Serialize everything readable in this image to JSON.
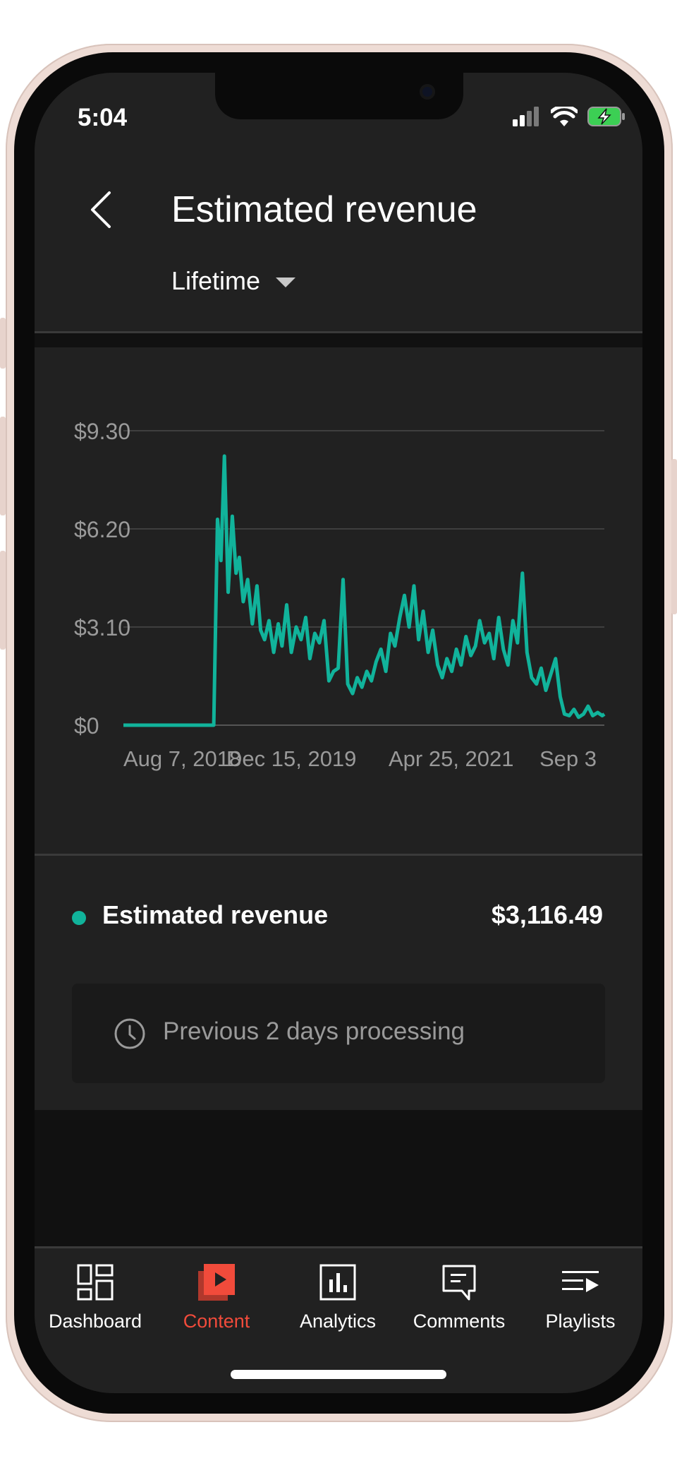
{
  "status_bar": {
    "time": "5:04"
  },
  "header": {
    "title": "Estimated revenue",
    "range_selector": "Lifetime"
  },
  "chart_data": {
    "type": "line",
    "title": "",
    "xlabel": "",
    "ylabel": "",
    "y_tick_labels": [
      "$0",
      "$3.10",
      "$6.20",
      "$9.30"
    ],
    "x_tick_labels": [
      "Aug 7, 2018",
      "Dec 15, 2019",
      "Apr 25, 2021",
      "Sep 3"
    ],
    "ylim": [
      0,
      9.3
    ],
    "grid": true,
    "color": "#11b39b",
    "series": [
      {
        "x": [
          "2017-01-01",
          "2017-08-01",
          "2017-10-01",
          "2017-12-01",
          "2017-12-20",
          "2018-01-10",
          "2018-01-25",
          "2018-02-10",
          "2018-02-25",
          "2018-03-12",
          "2018-03-28",
          "2018-04-15",
          "2018-05-01",
          "2018-05-15",
          "2018-06-01",
          "2018-06-20",
          "2018-07-10",
          "2018-07-30",
          "2018-08-15",
          "2018-09-01",
          "2018-09-20",
          "2018-10-10",
          "2018-10-30",
          "2018-11-15",
          "2018-12-05",
          "2018-12-25",
          "2019-01-15",
          "2019-02-05",
          "2019-02-25",
          "2019-03-15",
          "2019-04-05",
          "2019-04-25",
          "2019-05-15",
          "2019-06-05",
          "2019-06-25",
          "2019-07-15",
          "2019-08-05",
          "2019-08-25",
          "2019-09-15",
          "2019-10-05",
          "2019-10-25",
          "2019-11-15",
          "2019-12-05",
          "2019-12-25",
          "2020-01-15",
          "2020-02-05",
          "2020-02-25",
          "2020-03-15",
          "2020-04-05",
          "2020-04-25",
          "2020-05-15",
          "2020-06-05",
          "2020-06-25",
          "2020-07-15",
          "2020-08-05",
          "2020-08-25",
          "2020-09-15",
          "2020-10-05",
          "2020-10-25",
          "2020-11-15",
          "2020-12-05",
          "2020-12-25",
          "2021-01-15",
          "2021-02-05",
          "2021-02-25",
          "2021-03-15",
          "2021-04-05",
          "2021-04-25",
          "2021-05-15",
          "2021-06-05",
          "2021-06-25",
          "2021-07-15",
          "2021-08-05",
          "2021-08-25",
          "2021-09-15",
          "2021-10-05",
          "2021-10-25",
          "2021-11-15",
          "2021-12-05",
          "2021-12-25",
          "2022-01-15",
          "2022-02-05",
          "2022-02-25",
          "2022-03-15",
          "2022-04-05",
          "2022-04-25",
          "2022-05-15",
          "2022-06-05",
          "2022-06-25",
          "2022-07-15",
          "2022-08-05",
          "2022-08-25",
          "2022-09-03"
        ],
        "y": [
          0,
          0,
          0,
          0,
          0,
          0,
          0,
          6.5,
          5.2,
          8.5,
          4.2,
          6.6,
          4.8,
          5.3,
          3.9,
          4.6,
          3.2,
          4.4,
          3.0,
          2.7,
          3.3,
          2.3,
          3.2,
          2.5,
          3.8,
          2.3,
          3.1,
          2.7,
          3.4,
          2.1,
          2.9,
          2.6,
          3.3,
          1.4,
          1.7,
          1.8,
          4.6,
          1.3,
          1.0,
          1.5,
          1.2,
          1.7,
          1.4,
          2.0,
          2.4,
          1.7,
          2.9,
          2.5,
          3.4,
          4.1,
          3.1,
          4.4,
          2.7,
          3.6,
          2.3,
          3.0,
          1.9,
          1.5,
          2.1,
          1.7,
          2.4,
          1.9,
          2.8,
          2.2,
          2.5,
          3.3,
          2.6,
          2.9,
          2.1,
          3.4,
          2.4,
          1.9,
          3.3,
          2.6,
          4.8,
          2.3,
          1.5,
          1.3,
          1.8,
          1.1,
          1.6,
          2.1,
          0.9,
          0.35,
          0.3,
          0.5,
          0.25,
          0.35,
          0.6,
          0.3,
          0.4,
          0.3,
          0.35
        ]
      }
    ]
  },
  "summary": {
    "metric_label": "Estimated revenue",
    "metric_value": "$3,116.49",
    "processing_note": "Previous 2 days processing"
  },
  "bottom_nav": {
    "items": [
      {
        "label": "Dashboard",
        "icon": "dashboard-icon",
        "active": false
      },
      {
        "label": "Content",
        "icon": "content-icon",
        "active": true
      },
      {
        "label": "Analytics",
        "icon": "analytics-icon",
        "active": false
      },
      {
        "label": "Comments",
        "icon": "comments-icon",
        "active": false
      },
      {
        "label": "Playlists",
        "icon": "playlists-icon",
        "active": false
      }
    ],
    "active_color": "#f14b3b"
  }
}
